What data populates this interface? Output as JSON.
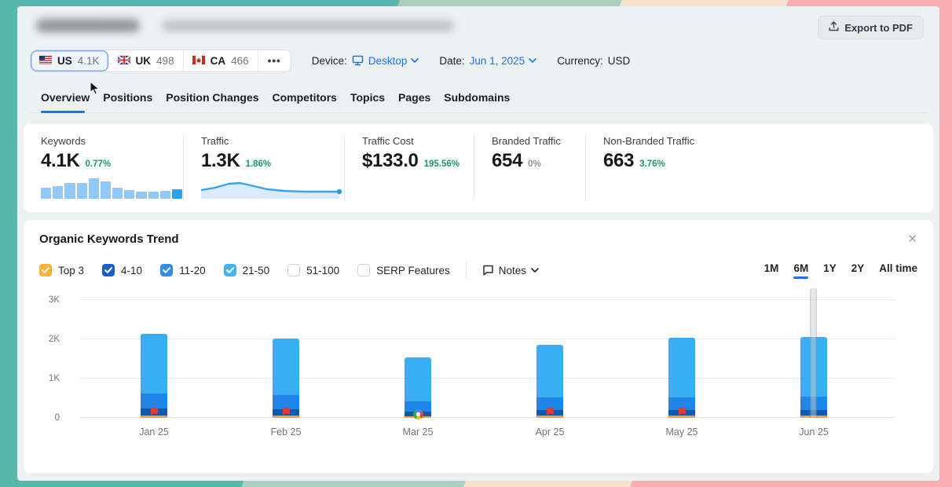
{
  "window": {
    "export_label": "Export to PDF"
  },
  "filters_bar": {
    "countries": [
      {
        "code": "us",
        "label": "US",
        "value": "4.1K",
        "selected": true
      },
      {
        "code": "uk",
        "label": "UK",
        "value": "498",
        "selected": false
      },
      {
        "code": "ca",
        "label": "CA",
        "value": "466",
        "selected": false
      }
    ],
    "more_label": "•••",
    "device_label": "Device:",
    "device_value": "Desktop",
    "date_label": "Date:",
    "date_value": "Jun 1, 2025",
    "currency_label": "Currency:",
    "currency_value": "USD"
  },
  "nav": {
    "tabs": [
      "Overview",
      "Positions",
      "Position Changes",
      "Competitors",
      "Topics",
      "Pages",
      "Subdomains"
    ],
    "active_index": 0
  },
  "metrics": [
    {
      "label": "Keywords",
      "value": "4.1K",
      "change": "0.77%",
      "change_type": "positive",
      "spark_bars": [
        55,
        60,
        78,
        78,
        100,
        85,
        55,
        42,
        36,
        33,
        38,
        48
      ]
    },
    {
      "label": "Traffic",
      "value": "1.3K",
      "change": "1.86%",
      "change_type": "positive",
      "spark_line": [
        [
          0,
          13
        ],
        [
          10,
          10
        ],
        [
          20,
          5
        ],
        [
          28,
          4
        ],
        [
          36,
          7
        ],
        [
          48,
          12
        ],
        [
          60,
          14
        ],
        [
          75,
          15
        ],
        [
          100,
          15
        ]
      ]
    },
    {
      "label": "Traffic Cost",
      "value": "$133.0",
      "change": "195.56%",
      "change_type": "positive"
    },
    {
      "label": "Branded Traffic",
      "value": "654",
      "change": "0%",
      "change_type": "neutral"
    },
    {
      "label": "Non-Branded Traffic",
      "value": "663",
      "change": "3.76%",
      "change_type": "positive"
    }
  ],
  "trend_card": {
    "title": "Organic Keywords Trend",
    "close_icon": "✕",
    "filters": [
      {
        "label": "Top 3",
        "checked": true,
        "color": "#f7b234"
      },
      {
        "label": "4-10",
        "checked": true,
        "color": "#1d5dcb"
      },
      {
        "label": "11-20",
        "checked": true,
        "color": "#2e8fe9"
      },
      {
        "label": "21-50",
        "checked": true,
        "color": "#46b3f6"
      },
      {
        "label": "51-100",
        "checked": false,
        "color": null
      },
      {
        "label": "SERP Features",
        "checked": false,
        "color": null
      }
    ],
    "notes_label": "Notes",
    "ranges": [
      "1M",
      "6M",
      "1Y",
      "2Y",
      "All time"
    ],
    "active_range": "6M"
  },
  "chart_data": {
    "type": "bar",
    "stacked": true,
    "title": "Organic Keywords Trend",
    "categories": [
      "Jan 25",
      "Feb 25",
      "Mar 25",
      "Apr 25",
      "May 25",
      "Jun 25"
    ],
    "series": [
      {
        "name": "Top 3",
        "color": "#f0a43c",
        "values": [
          60,
          60,
          50,
          60,
          60,
          60
        ]
      },
      {
        "name": "4-10",
        "color": "#1157ac",
        "values": [
          190,
          160,
          120,
          140,
          150,
          150
        ]
      },
      {
        "name": "11-20",
        "color": "#1e86e6",
        "values": [
          380,
          360,
          250,
          320,
          320,
          330
        ]
      },
      {
        "name": "21-50",
        "color": "#3aaef4",
        "values": [
          1520,
          1440,
          1120,
          1340,
          1510,
          1520
        ]
      }
    ],
    "totals": [
      2150,
      2020,
      1540,
      1860,
      2040,
      2060
    ],
    "markers": [
      "flag",
      "flag",
      "google",
      "flag",
      "flag",
      null
    ],
    "y_ticks": [
      "0",
      "1K",
      "2K",
      "3K"
    ],
    "ylim": [
      0,
      3000
    ],
    "grid": true,
    "legend_position": "none",
    "hover_month_index": 5
  },
  "colors": {
    "accent": "#2370e8",
    "positive": "#169a68"
  }
}
